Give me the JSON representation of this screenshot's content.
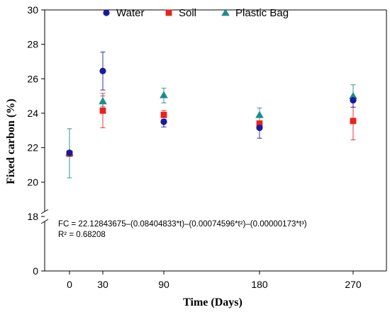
{
  "chart_data": {
    "type": "scatter",
    "xlabel": "Time (Days)",
    "ylabel": "Fixed carbon  (%)",
    "x_ticks": [
      0,
      30,
      90,
      180,
      270
    ],
    "y_ticks_upper": [
      18,
      20,
      22,
      24,
      26,
      28,
      30
    ],
    "y_ticks_lower": [
      0
    ],
    "ylim_upper": [
      18,
      30
    ],
    "y_axis_break": true,
    "grid": false,
    "legend_position": "top",
    "annotations": [
      "FC = 22.12843675–(0.08404833*t)–(0.00074596*t²)–(0.00000173*t³)",
      "R² = 0.68208"
    ],
    "series": [
      {
        "name": "Water",
        "marker": "circle",
        "color": "#1a1a9e",
        "x": [
          0,
          30,
          90,
          180,
          270
        ],
        "y": [
          21.7,
          26.45,
          23.5,
          23.15,
          24.75
        ],
        "err_low": [
          0.05,
          1.1,
          0.3,
          0.6,
          0.4
        ],
        "err_high": [
          0.05,
          1.1,
          0.15,
          0.3,
          0.2
        ]
      },
      {
        "name": "Soil",
        "marker": "square",
        "color": "#e8221e",
        "x": [
          0,
          30,
          90,
          180,
          270
        ],
        "y": [
          21.65,
          24.15,
          23.9,
          23.4,
          23.55
        ],
        "err_low": [
          0.05,
          1.0,
          0.25,
          0.15,
          1.1
        ],
        "err_high": [
          0.05,
          1.0,
          0.25,
          0.15,
          1.1
        ]
      },
      {
        "name": "Plastic Bag",
        "marker": "triangle",
        "color": "#1e8c8c",
        "x": [
          0,
          30,
          90,
          180,
          270
        ],
        "y": [
          21.7,
          24.7,
          25.05,
          23.9,
          25.0
        ],
        "err_low": [
          1.45,
          0.3,
          0.45,
          0.4,
          0.65
        ],
        "err_high": [
          1.4,
          0.3,
          0.4,
          0.4,
          0.65
        ]
      }
    ]
  }
}
